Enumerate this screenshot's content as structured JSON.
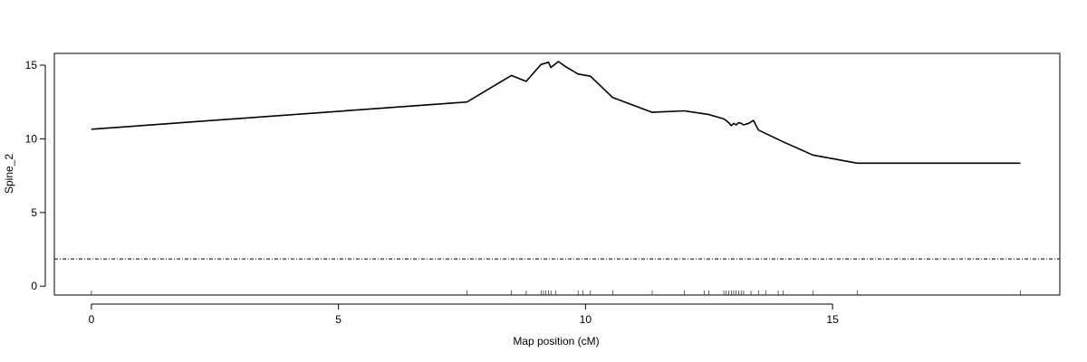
{
  "chart_data": {
    "type": "line",
    "title": "",
    "xlabel": "Map position (cM)",
    "ylabel": "Spine_2",
    "xlim": [
      -0.75,
      19.6
    ],
    "ylim": [
      -0.6,
      15.8
    ],
    "x_ticks": [
      0,
      5,
      10,
      15
    ],
    "y_ticks": [
      0,
      5,
      10,
      15
    ],
    "grid": false,
    "threshold": 1.85,
    "series": [
      {
        "x": [
          0,
          7.6,
          8.5,
          8.8,
          9.1,
          9.25,
          9.3,
          9.45,
          9.6,
          9.85,
          10.1,
          10.55,
          11.35,
          12.0,
          12.5,
          12.8,
          12.9,
          12.95,
          13.0,
          13.05,
          13.1,
          13.15,
          13.2,
          13.3,
          13.4,
          13.5,
          13.75,
          14.0,
          14.6,
          15.5,
          18.8
        ],
        "y": [
          10.65,
          12.5,
          14.3,
          13.9,
          15.05,
          15.2,
          14.85,
          15.25,
          14.9,
          14.4,
          14.25,
          12.8,
          11.8,
          11.9,
          11.65,
          11.35,
          11.1,
          10.9,
          11.05,
          10.95,
          11.1,
          11.05,
          10.95,
          11.05,
          11.25,
          10.6,
          10.2,
          9.8,
          8.9,
          8.35,
          8.35
        ]
      }
    ],
    "marker_positions": [
      0,
      7.6,
      8.5,
      8.8,
      9.1,
      9.15,
      9.2,
      9.25,
      9.3,
      9.4,
      9.85,
      9.95,
      10.1,
      10.55,
      11.35,
      12.0,
      12.4,
      12.5,
      12.8,
      12.85,
      12.9,
      12.95,
      13.0,
      13.05,
      13.1,
      13.15,
      13.2,
      13.35,
      13.5,
      13.65,
      13.9,
      14.0,
      14.6,
      15.5,
      18.8
    ]
  }
}
